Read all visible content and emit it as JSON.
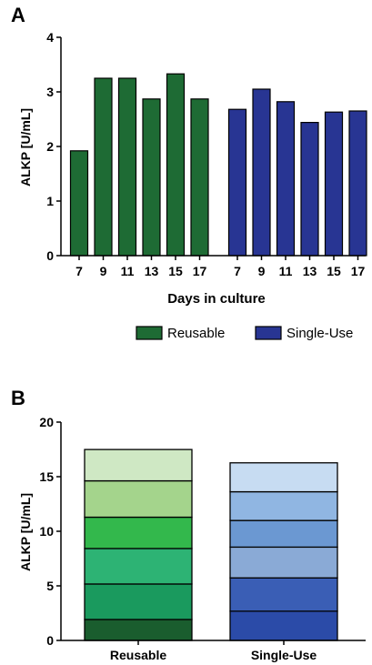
{
  "chart_data": [
    {
      "panel_label": "A",
      "type": "bar",
      "xlabel": "Days in culture",
      "ylabel": "ALKP [U/mL]",
      "ylim": [
        0,
        4
      ],
      "yticks": [
        "0",
        "1",
        "2",
        "3",
        "4"
      ],
      "series": [
        {
          "name": "Reusable",
          "color": "#1e6b34",
          "categories": [
            "7",
            "9",
            "11",
            "13",
            "15",
            "17"
          ],
          "values": [
            1.92,
            3.25,
            3.25,
            2.87,
            3.33,
            2.87
          ]
        },
        {
          "name": "Single-Use",
          "color": "#283593",
          "categories": [
            "7",
            "9",
            "11",
            "13",
            "15",
            "17"
          ],
          "values": [
            2.68,
            3.05,
            2.82,
            2.44,
            2.63,
            2.65
          ]
        }
      ],
      "legend": [
        "Reusable",
        "Single-Use"
      ],
      "legend_placement": "bottom"
    },
    {
      "panel_label": "B",
      "type": "bar",
      "stacked": true,
      "ylabel": "ALKP [U/mL]",
      "ylim": [
        0,
        20
      ],
      "yticks": [
        "0",
        "5",
        "10",
        "15",
        "20"
      ],
      "categories": [
        "Reusable",
        "Single-Use"
      ],
      "stacks": [
        {
          "category": "Reusable",
          "segments": [
            1.92,
            3.25,
            3.25,
            2.87,
            3.33,
            2.87
          ],
          "colors": [
            "#1a5d2e",
            "#1a9a5e",
            "#2db374",
            "#33b84c",
            "#a4d48c",
            "#cfe8c4"
          ]
        },
        {
          "category": "Single-Use",
          "segments": [
            2.68,
            3.05,
            2.82,
            2.44,
            2.63,
            2.65
          ],
          "colors": [
            "#2b4ba8",
            "#3a5eb5",
            "#8aaad6",
            "#6b98d2",
            "#90b6e2",
            "#c7dcf2"
          ]
        }
      ]
    }
  ]
}
